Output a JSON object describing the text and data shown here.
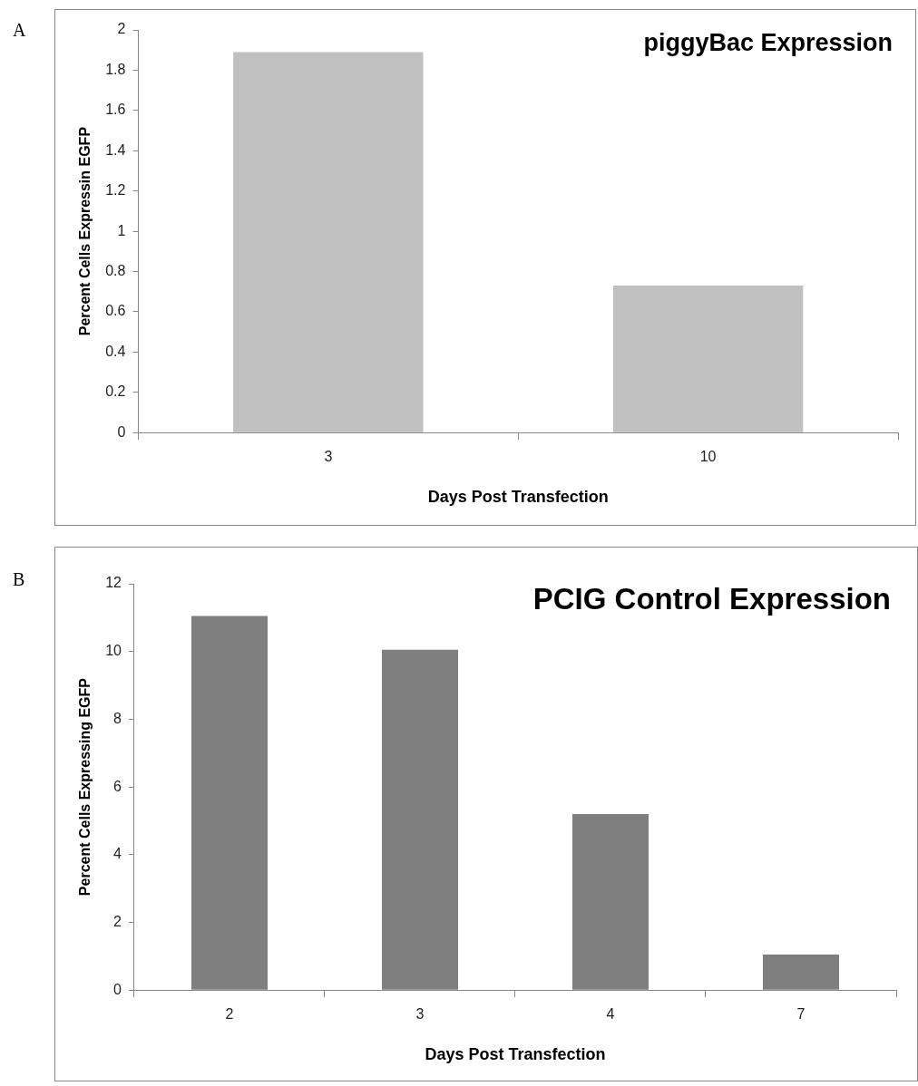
{
  "chart_data": [
    {
      "type": "bar",
      "title": "piggyBac Expression",
      "xlabel": "Days Post Transfection",
      "ylabel": "Percent Cells Expressin EGFP",
      "categories": [
        "3",
        "10"
      ],
      "values": [
        1.89,
        0.73
      ],
      "color": "#c0c0c0",
      "ylim": [
        0,
        2
      ],
      "yticks": [
        0,
        0.2,
        0.4,
        0.6,
        0.8,
        1,
        1.2,
        1.4,
        1.6,
        1.8,
        2
      ],
      "annotations": [
        "A"
      ]
    },
    {
      "type": "bar",
      "title": "PCIG Control Expression",
      "xlabel": "Days Post Transfection",
      "ylabel": "Percent Cells Expressing EGFP",
      "categories": [
        "2",
        "3",
        "4",
        "7"
      ],
      "values": [
        11.05,
        10.05,
        5.2,
        1.05
      ],
      "color": "#7f7f7f",
      "ylim": [
        0,
        12
      ],
      "yticks": [
        0,
        2,
        4,
        6,
        8,
        10,
        12
      ],
      "annotations": [
        "B"
      ]
    }
  ]
}
